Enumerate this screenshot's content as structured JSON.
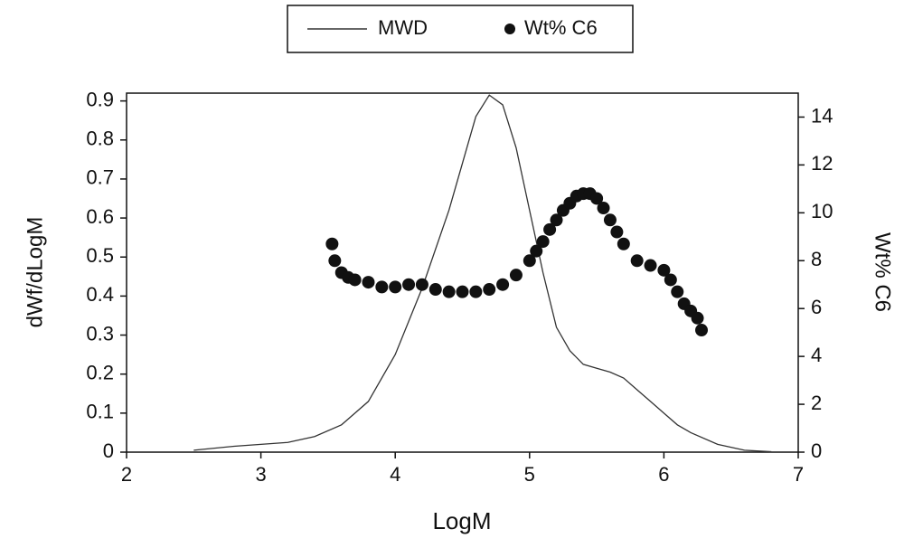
{
  "chart_data": {
    "type": "line",
    "xlabel": "LogM",
    "ylabel": "dWf/dLogM",
    "y2label": "Wt% C6",
    "xlim": [
      2,
      7
    ],
    "xticks": [
      2,
      3,
      4,
      5,
      6,
      7
    ],
    "ylim": [
      0,
      0.92
    ],
    "yticks": [
      0,
      0.1,
      0.2,
      0.3,
      0.4,
      0.5,
      0.6,
      0.7,
      0.8,
      0.9
    ],
    "y2lim": [
      0,
      15
    ],
    "y2ticks": [
      0,
      2,
      4,
      6,
      8,
      10,
      12,
      14
    ],
    "legend": "top",
    "series": [
      {
        "name": "MWD",
        "type": "line",
        "color": "#333333",
        "x": [
          2.5,
          2.8,
          3.0,
          3.2,
          3.4,
          3.6,
          3.8,
          4.0,
          4.2,
          4.4,
          4.5,
          4.6,
          4.7,
          4.8,
          4.9,
          5.0,
          5.1,
          5.2,
          5.3,
          5.4,
          5.5,
          5.6,
          5.7,
          5.8,
          5.9,
          6.0,
          6.1,
          6.2,
          6.4,
          6.6,
          6.8
        ],
        "values": [
          0.005,
          0.015,
          0.02,
          0.025,
          0.04,
          0.07,
          0.13,
          0.25,
          0.42,
          0.62,
          0.74,
          0.86,
          0.915,
          0.89,
          0.78,
          0.62,
          0.46,
          0.32,
          0.26,
          0.225,
          0.215,
          0.205,
          0.19,
          0.16,
          0.13,
          0.1,
          0.07,
          0.05,
          0.02,
          0.005,
          0.001
        ]
      },
      {
        "name": "Wt% C6",
        "type": "scatter",
        "axis": "y2",
        "color": "#111111",
        "x": [
          3.53,
          3.55,
          3.6,
          3.65,
          3.7,
          3.8,
          3.9,
          4.0,
          4.1,
          4.2,
          4.3,
          4.4,
          4.5,
          4.6,
          4.7,
          4.8,
          4.9,
          5.0,
          5.05,
          5.1,
          5.15,
          5.2,
          5.25,
          5.3,
          5.35,
          5.4,
          5.45,
          5.5,
          5.55,
          5.6,
          5.65,
          5.7,
          5.8,
          5.9,
          6.0,
          6.05,
          6.1,
          6.15,
          6.2,
          6.25,
          6.28
        ],
        "values": [
          8.7,
          8.0,
          7.5,
          7.3,
          7.2,
          7.1,
          6.9,
          6.9,
          7.0,
          7.0,
          6.8,
          6.7,
          6.7,
          6.7,
          6.8,
          7.0,
          7.4,
          8.0,
          8.4,
          8.8,
          9.3,
          9.7,
          10.1,
          10.4,
          10.7,
          10.8,
          10.8,
          10.6,
          10.2,
          9.7,
          9.2,
          8.7,
          8.0,
          7.8,
          7.6,
          7.2,
          6.7,
          6.2,
          5.9,
          5.6,
          5.1
        ]
      }
    ]
  }
}
